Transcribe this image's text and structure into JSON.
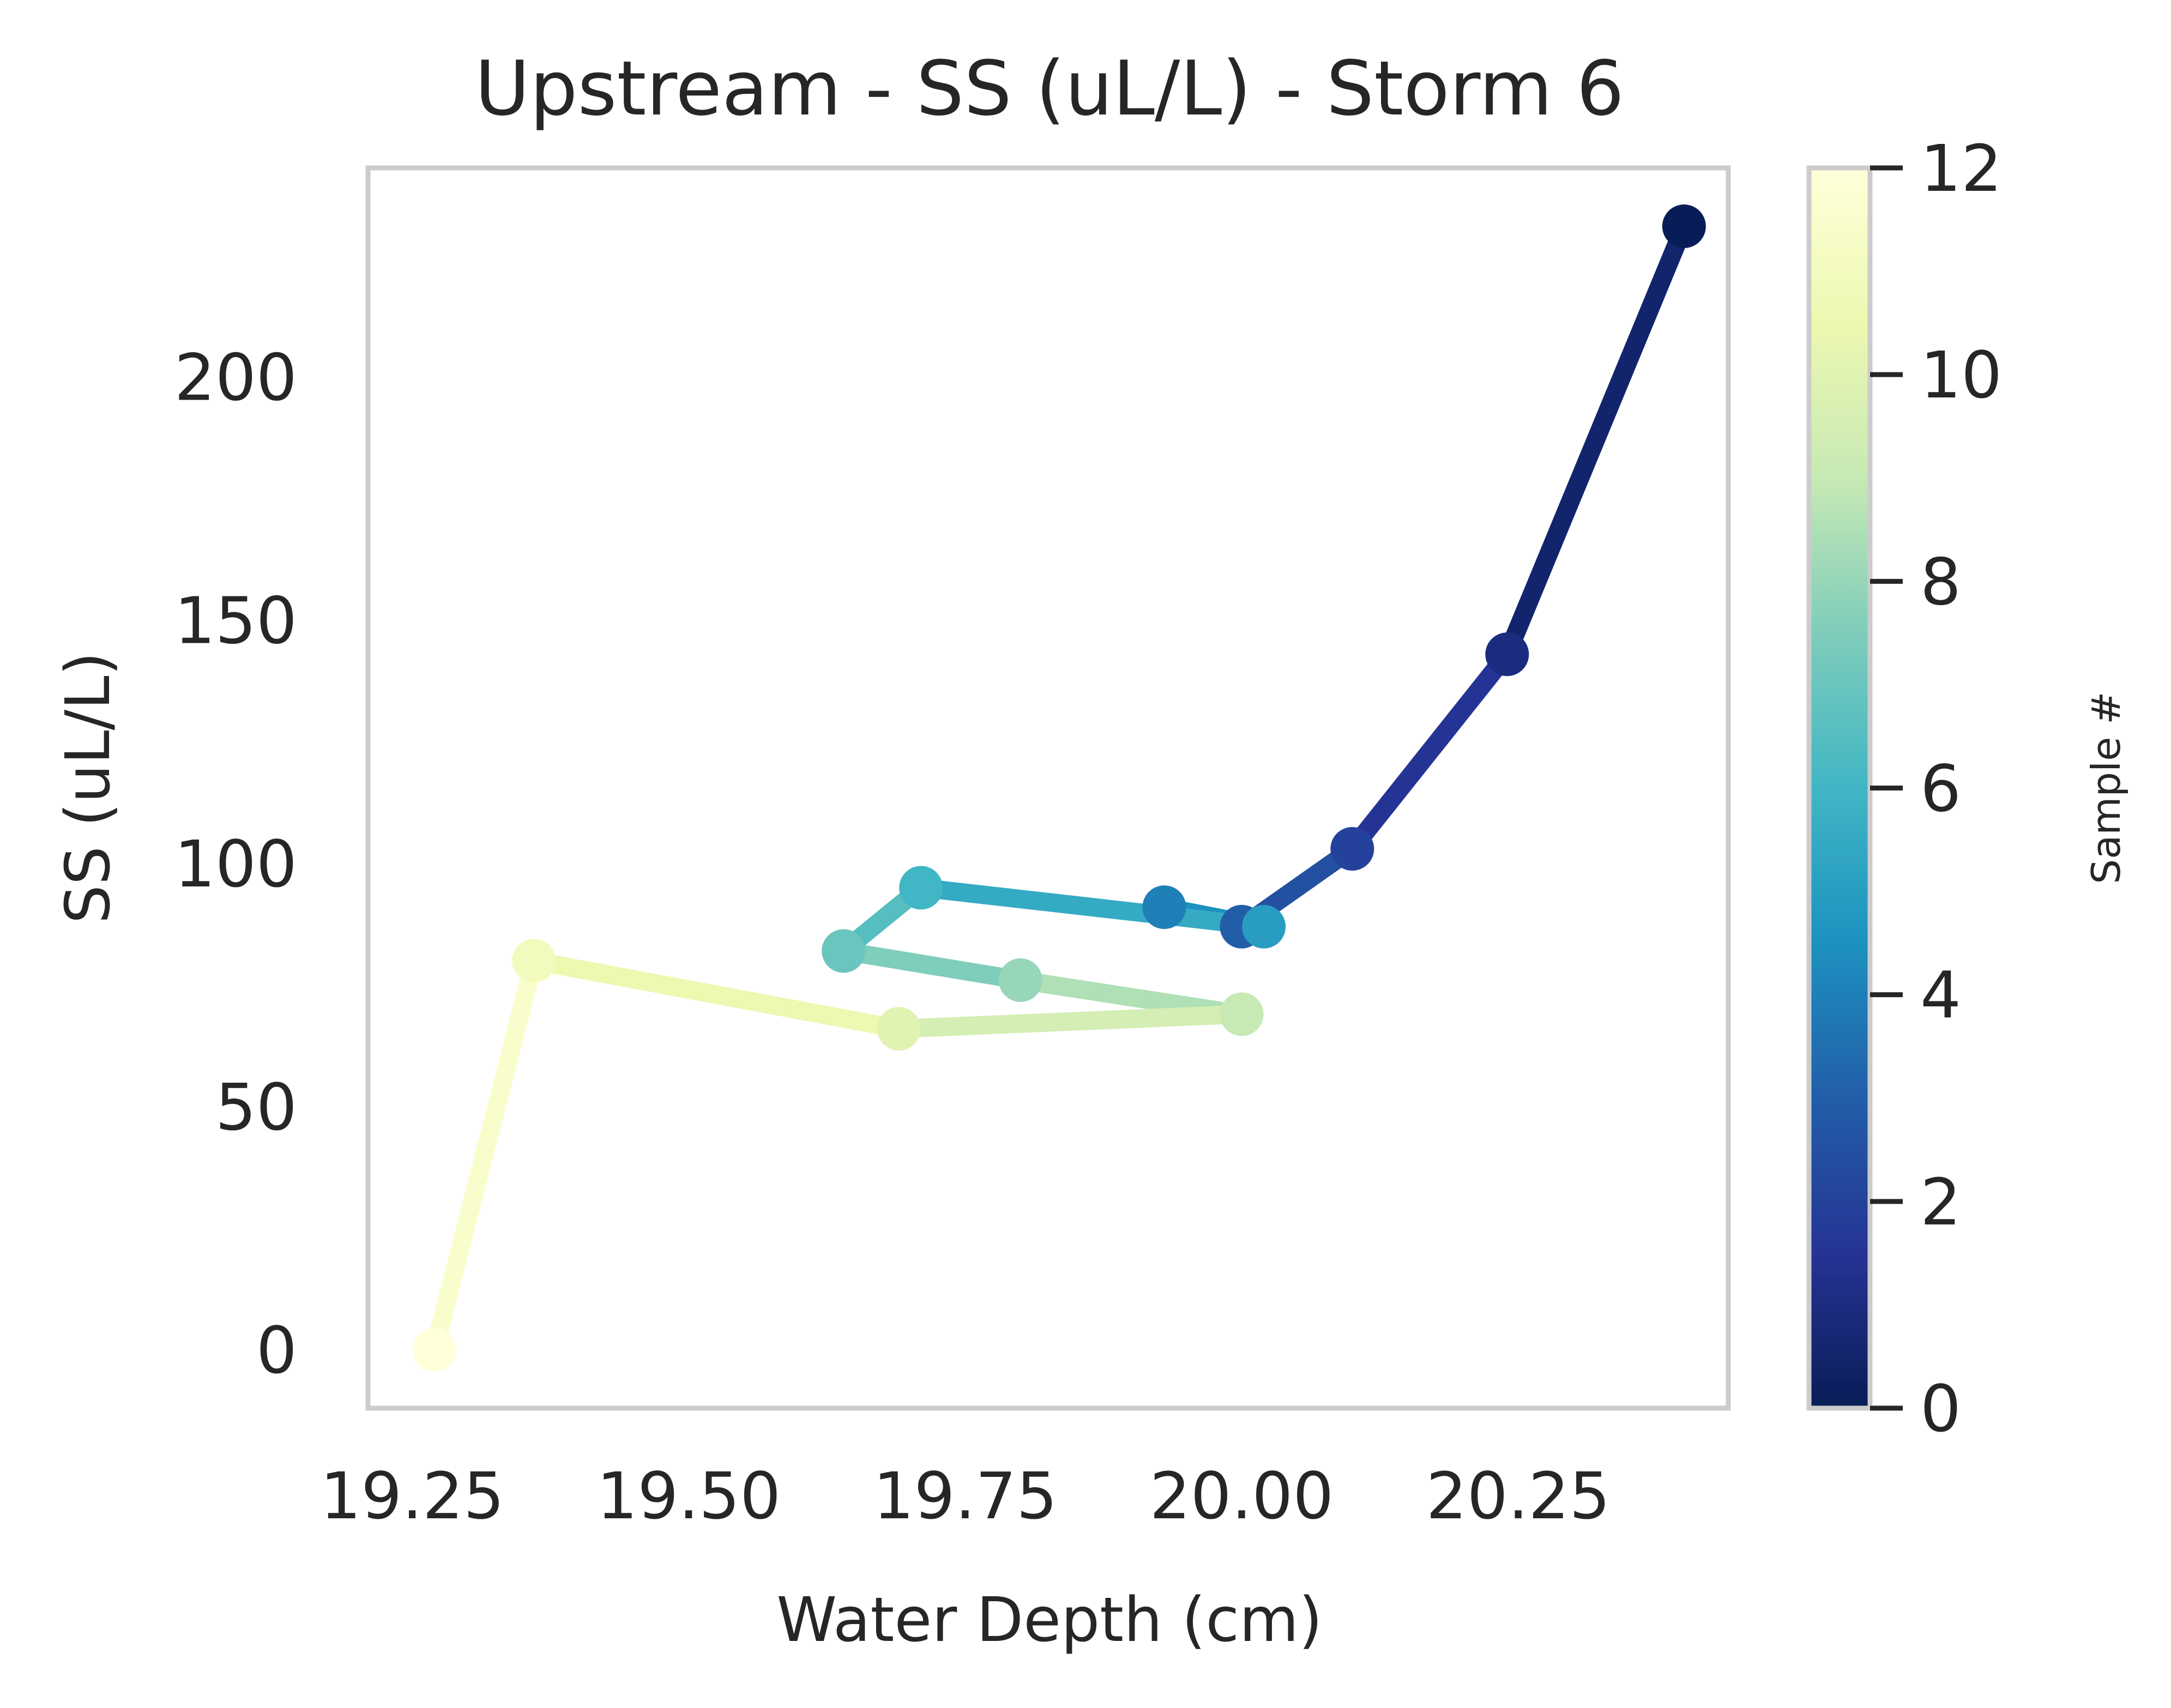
{
  "chart_data": {
    "type": "line",
    "title": "Upstream - SS (uL/L) - Storm 6",
    "xlabel": "Water Depth (cm)",
    "ylabel": "SS (uL/L)",
    "xlim": [
      19.21,
      20.44
    ],
    "ylim": [
      -12,
      243
    ],
    "xticks": [
      19.25,
      19.5,
      19.75,
      20.0,
      20.25
    ],
    "xtick_labels": [
      "19.25",
      "19.50",
      "19.75",
      "20.00",
      "20.25"
    ],
    "yticks": [
      0,
      50,
      100,
      150,
      200
    ],
    "ytick_labels": [
      "0",
      "50",
      "100",
      "150",
      "200"
    ],
    "grid": false,
    "colorscale": "YlGnBu",
    "colorbar": {
      "label": "Sample #",
      "range": [
        0,
        12
      ],
      "ticks": [
        0,
        2,
        4,
        6,
        8,
        10,
        12
      ],
      "tick_labels": [
        "0",
        "2",
        "4",
        "6",
        "8",
        "10",
        "12"
      ]
    },
    "points": [
      {
        "sample": 0,
        "x": 20.4,
        "y": 231
      },
      {
        "sample": 1,
        "x": 20.24,
        "y": 143
      },
      {
        "sample": 2,
        "x": 20.1,
        "y": 103
      },
      {
        "sample": 3,
        "x": 20.0,
        "y": 87
      },
      {
        "sample": 4,
        "x": 19.93,
        "y": 91
      },
      {
        "sample": 5,
        "x": 20.02,
        "y": 87
      },
      {
        "sample": 6,
        "x": 19.71,
        "y": 95
      },
      {
        "sample": 7,
        "x": 19.64,
        "y": 82
      },
      {
        "sample": 8,
        "x": 19.8,
        "y": 76
      },
      {
        "sample": 9,
        "x": 20.0,
        "y": 69
      },
      {
        "sample": 10,
        "x": 19.69,
        "y": 66
      },
      {
        "sample": 11,
        "x": 19.36,
        "y": 80
      },
      {
        "sample": 12,
        "x": 19.27,
        "y": 0
      }
    ],
    "colors": {
      "axis_frame": "#cccccc",
      "text": "#262626",
      "colormap_stops": [
        "#081d58",
        "#253494",
        "#225ea8",
        "#1d91c0",
        "#41b6c4",
        "#7fcdbb",
        "#c7e9b4",
        "#edf8b1",
        "#ffffd9"
      ]
    }
  }
}
